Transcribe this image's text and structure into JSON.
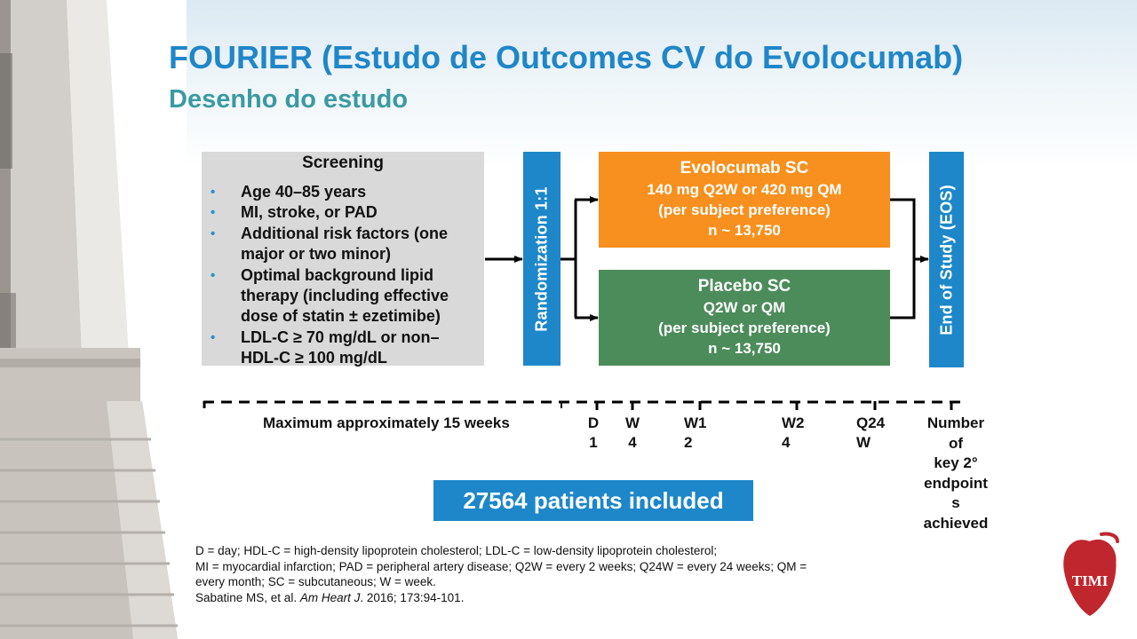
{
  "slide": {
    "title": "FOURIER (Estudo de Outcomes CV do Evolocumab)",
    "subtitle": "Desenho do estudo"
  },
  "screening": {
    "heading": "Screening",
    "criteria": [
      "Age 40–85 years",
      "MI, stroke, or PAD",
      "Additional risk factors (one major or two minor)",
      "Optimal background lipid therapy (including effective dose of statin ± ezetimibe)",
      "LDL-C ≥ 70 mg/dL or non–HDL-C ≥ 100 mg/dL"
    ]
  },
  "randomization": {
    "label": "Randomization 1:1"
  },
  "arms": {
    "evolocumab": {
      "name": "Evolocumab SC",
      "dose": "140 mg Q2W or 420 mg QM",
      "note": "(per subject preference)",
      "n": "n ~ 13,750",
      "color": "#f7901e"
    },
    "placebo": {
      "name": "Placebo SC",
      "dose": "Q2W or QM",
      "note": "(per subject preference)",
      "n": "n ~ 13,750",
      "color": "#4c8c5a"
    }
  },
  "end_of_study": {
    "label": "End of Study (EOS)"
  },
  "timeline": {
    "screening_period": "Maximum approximately 15 weeks",
    "visits": [
      {
        "line1": "D",
        "line2": "1"
      },
      {
        "line1": "W",
        "line2": "4"
      },
      {
        "line1": "W1",
        "line2": "2"
      },
      {
        "line1": "W2",
        "line2": "4"
      },
      {
        "line1": "Q24",
        "line2": "W"
      }
    ],
    "endpoint_lines": [
      "Number",
      "of",
      "key 2°",
      "endpoint",
      "s",
      "achieved"
    ]
  },
  "patients_banner": "27564 patients included",
  "footnotes": {
    "line1": "D = day; HDL-C = high-density lipoprotein cholesterol; LDL-C = low-density lipoprotein cholesterol;",
    "line2": "MI  = myocardial infarction; PAD = peripheral artery disease; Q2W = every 2 weeks; Q24W = every 24 weeks; QM =",
    "line3": "every month; SC = subcutaneous; W = week.",
    "citation_authors": "Sabatine MS, et al. ",
    "citation_journal": "Am Heart J",
    "citation_rest": ". 2016; 173:94-101."
  },
  "logo": {
    "text": "TIMI",
    "color": "#c0262d"
  },
  "colors": {
    "title": "#1f86c8",
    "subtitle": "#3a9aa2",
    "accent_blue": "#1d87c9"
  }
}
